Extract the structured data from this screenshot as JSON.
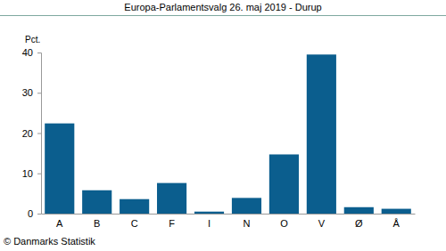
{
  "chart_data": {
    "type": "bar",
    "title": "Europa-Parlamentsvalg 26. maj 2019 - Durup",
    "ylabel": "Pct.",
    "annotations": [
      "© Danmarks Statistik"
    ],
    "categories": [
      "A",
      "B",
      "C",
      "F",
      "I",
      "N",
      "O",
      "V",
      "Ø",
      "Å"
    ],
    "values": [
      22.4,
      5.8,
      3.6,
      7.6,
      0.5,
      3.9,
      14.7,
      39.5,
      1.6,
      1.2
    ],
    "color": "#0b5e8e",
    "ylim": [
      0,
      40
    ],
    "yticks": [
      0,
      10,
      20,
      30,
      40
    ],
    "grid": false
  }
}
